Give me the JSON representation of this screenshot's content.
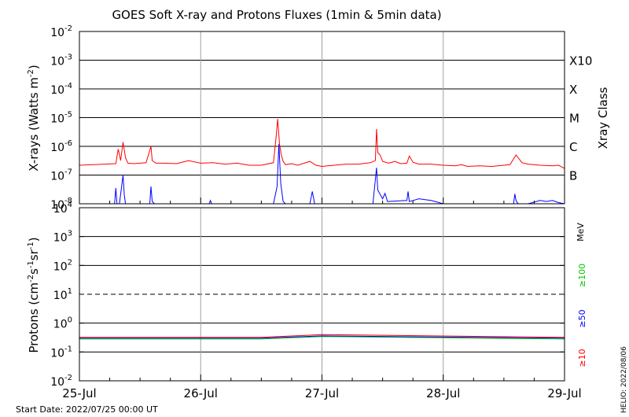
{
  "title": "GOES Soft X-ray and Protons Fluxes   (1min & 5min data)",
  "footer_start": "Start Date: 2022/07/25 00:00 UT",
  "footer_side": "HELIO: 2022/08/06",
  "chart_data": [
    {
      "type": "line",
      "panel": "xray",
      "ylabel": "X-rays (Watts m^-2)",
      "yscale": "log",
      "ylim": [
        1e-08,
        0.01
      ],
      "ytick_labels": [
        {
          "base": "10",
          "exp": "-2"
        },
        {
          "base": "10",
          "exp": "-3"
        },
        {
          "base": "10",
          "exp": "-4"
        },
        {
          "base": "10",
          "exp": "-5"
        },
        {
          "base": "10",
          "exp": "-6"
        },
        {
          "base": "10",
          "exp": "-7"
        },
        {
          "base": "10",
          "exp": "-8"
        }
      ],
      "right_axis_label": "Xray Class",
      "class_labels": [
        {
          "label": "X10",
          "flux": 0.001
        },
        {
          "label": "X",
          "flux": 0.0001
        },
        {
          "label": "M",
          "flux": 1e-05
        },
        {
          "label": "C",
          "flux": 1e-06
        },
        {
          "label": "B",
          "flux": 1e-07
        }
      ],
      "series": [
        {
          "color": "#ff0000",
          "x_days": [
            0.0,
            0.3,
            0.32,
            0.34,
            0.36,
            0.38,
            0.4,
            0.45,
            0.55,
            0.59,
            0.6,
            0.63,
            0.7,
            0.8,
            0.9,
            1.0,
            1.1,
            1.2,
            1.3,
            1.4,
            1.5,
            1.6,
            1.62,
            1.635,
            1.65,
            1.665,
            1.68,
            1.7,
            1.75,
            1.8,
            1.9,
            1.95,
            2.0,
            2.1,
            2.2,
            2.3,
            2.4,
            2.44,
            2.45,
            2.46,
            2.48,
            2.5,
            2.55,
            2.6,
            2.65,
            2.7,
            2.72,
            2.75,
            2.8,
            2.9,
            3.0,
            3.1,
            3.15,
            3.2,
            3.3,
            3.4,
            3.5,
            3.55,
            3.6,
            3.65,
            3.7,
            3.8,
            3.9,
            3.95,
            4.0
          ],
          "y": [
            2.2e-07,
            2.5e-07,
            8e-07,
            3.2e-07,
            1.4e-06,
            4e-07,
            2.6e-07,
            2.5e-07,
            2.7e-07,
            1e-06,
            3.2e-07,
            2.6e-07,
            2.6e-07,
            2.5e-07,
            3.2e-07,
            2.6e-07,
            2.7e-07,
            2.4e-07,
            2.6e-07,
            2.2e-07,
            2.2e-07,
            2.7e-07,
            1.8e-06,
            9e-06,
            1.2e-06,
            5e-07,
            3e-07,
            2.3e-07,
            2.5e-07,
            2.2e-07,
            3e-07,
            2.2e-07,
            2e-07,
            2.2e-07,
            2.4e-07,
            2.4e-07,
            2.7e-07,
            3.2e-07,
            4e-06,
            6e-07,
            5e-07,
            3e-07,
            2.6e-07,
            3e-07,
            2.5e-07,
            2.6e-07,
            4.6e-07,
            2.8e-07,
            2.4e-07,
            2.4e-07,
            2.2e-07,
            2.1e-07,
            2.3e-07,
            2e-07,
            2.1e-07,
            2e-07,
            2.2e-07,
            2.3e-07,
            5e-07,
            2.7e-07,
            2.4e-07,
            2.2e-07,
            2.1e-07,
            2.2e-07,
            1.7e-07
          ]
        },
        {
          "color": "#0000ff",
          "x_days": [
            0.0,
            0.29,
            0.3,
            0.31,
            0.33,
            0.36,
            0.37,
            0.38,
            0.4,
            0.58,
            0.59,
            0.6,
            0.62,
            1.07,
            1.08,
            1.09,
            1.6,
            1.63,
            1.645,
            1.66,
            1.68,
            1.7,
            1.9,
            1.92,
            1.94,
            2.42,
            2.45,
            2.46,
            2.5,
            2.52,
            2.54,
            2.7,
            2.71,
            2.72,
            2.75,
            2.8,
            2.85,
            2.9,
            3.0,
            3.1,
            3.2,
            3.3,
            3.4,
            3.5,
            3.58,
            3.59,
            3.6,
            3.61,
            3.62,
            3.7,
            3.8,
            3.85,
            3.9,
            3.95,
            4.0
          ],
          "y": [
            8e-09,
            8e-09,
            3.5e-08,
            8e-09,
            8e-09,
            1e-07,
            2e-08,
            8e-09,
            8e-09,
            8e-09,
            4e-08,
            1.2e-08,
            8e-09,
            8e-09,
            1.3e-08,
            8e-09,
            8e-09,
            4e-08,
            1.2e-06,
            5e-08,
            1.2e-08,
            8e-09,
            8e-09,
            2.7e-08,
            8e-09,
            8e-09,
            1.8e-07,
            3e-08,
            1.5e-08,
            2.3e-08,
            1.2e-08,
            1.3e-08,
            2.7e-08,
            1.2e-08,
            1.3e-08,
            1.5e-08,
            1.4e-08,
            1.3e-08,
            8e-09,
            8e-09,
            8e-09,
            8e-09,
            8e-09,
            8e-09,
            8e-09,
            2.2e-08,
            1.3e-08,
            1.1e-08,
            8e-09,
            8e-09,
            1.3e-08,
            1.2e-08,
            1.3e-08,
            1.1e-08,
            8e-09
          ]
        }
      ]
    },
    {
      "type": "line",
      "panel": "protons",
      "ylabel": "Protons (cm^-2 s^-1 sr^-1)",
      "yscale": "log",
      "ylim": [
        0.01,
        10000
      ],
      "ytick_labels": [
        {
          "base": "10",
          "exp": "4"
        },
        {
          "base": "10",
          "exp": "3"
        },
        {
          "base": "10",
          "exp": "2"
        },
        {
          "base": "10",
          "exp": "1"
        },
        {
          "base": "10",
          "exp": "0"
        },
        {
          "base": "10",
          "exp": "-1"
        },
        {
          "base": "10",
          "exp": "-2"
        }
      ],
      "threshold": 10,
      "right_axis_label": "MeV",
      "legend": [
        {
          "label": "≥100",
          "color": "#00cc00"
        },
        {
          "label": "≥50",
          "color": "#0000ff"
        },
        {
          "label": "≥10",
          "color": "#ff0000"
        }
      ],
      "series": [
        {
          "color": "#00cc00",
          "x_days": [
            0.0,
            1.5,
            2.0,
            4.0
          ],
          "y": [
            0.28,
            0.28,
            0.34,
            0.28
          ]
        },
        {
          "color": "#0000ff",
          "x_days": [
            0.0,
            1.5,
            2.0,
            4.0
          ],
          "y": [
            0.3,
            0.3,
            0.36,
            0.3
          ]
        },
        {
          "color": "#ff0000",
          "x_days": [
            0.0,
            1.5,
            2.0,
            4.0
          ],
          "y": [
            0.32,
            0.32,
            0.4,
            0.32
          ]
        }
      ],
      "xtick_labels": [
        "25-Jul",
        "26-Jul",
        "27-Jul",
        "28-Jul",
        "29-Jul"
      ],
      "xlim_days": [
        0,
        4
      ]
    }
  ]
}
